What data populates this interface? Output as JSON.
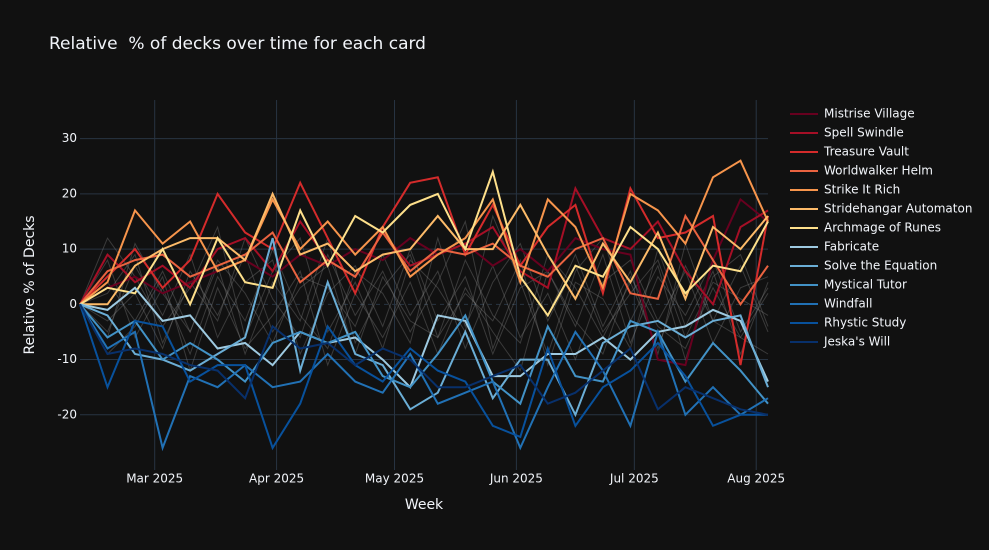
{
  "chart_data": {
    "type": "line",
    "title": "Relative  % of decks over time for each card",
    "x_label": "Week",
    "y_label": "Relative % of Decks",
    "x": [
      40,
      47,
      54,
      61,
      68,
      75,
      82,
      89,
      96,
      103,
      110,
      117,
      124,
      131,
      138,
      145,
      152,
      159,
      166,
      173,
      180,
      187,
      194,
      201,
      208,
      215
    ],
    "xlim": [
      40,
      215
    ],
    "xticks": [
      {
        "value": 59,
        "label": "Mar 2025"
      },
      {
        "value": 90,
        "label": "Apr 2025"
      },
      {
        "value": 120,
        "label": "May 2025"
      },
      {
        "value": 151,
        "label": "Jun 2025"
      },
      {
        "value": 181,
        "label": "Jul 2025"
      },
      {
        "value": 212,
        "label": "Aug 2025"
      }
    ],
    "ylim": [
      -30,
      37
    ],
    "yticks": [
      -20,
      -10,
      0,
      10,
      20,
      30
    ],
    "grid": true,
    "legend": "right",
    "background_color": "#8a8a8a",
    "background_series": [
      {
        "values": [
          0,
          4,
          -3,
          6,
          -5,
          8,
          2,
          -7,
          5,
          3,
          -4,
          9,
          -2,
          6,
          -8,
          4,
          11,
          -3,
          7,
          -5,
          2,
          8,
          -6,
          4,
          1,
          -2
        ]
      },
      {
        "values": [
          0,
          -5,
          7,
          -2,
          9,
          -6,
          4,
          8,
          -9,
          2,
          7,
          -4,
          10,
          -3,
          5,
          -9,
          3,
          6,
          -4,
          9,
          -7,
          5,
          -2,
          8,
          -5,
          3
        ]
      },
      {
        "values": [
          0,
          8,
          -6,
          3,
          -9,
          5,
          -3,
          10,
          -2,
          -8,
          6,
          2,
          -7,
          12,
          -4,
          7,
          -6,
          2,
          -10,
          4,
          8,
          -3,
          6,
          -7,
          3,
          5
        ]
      },
      {
        "values": [
          0,
          -3,
          2,
          -8,
          6,
          -2,
          9,
          -5,
          3,
          7,
          -9,
          5,
          -3,
          -6,
          8,
          -2,
          -7,
          9,
          3,
          -6,
          4,
          -8,
          7,
          -3,
          -6,
          2
        ]
      },
      {
        "values": [
          0,
          12,
          5,
          -4,
          3,
          14,
          -6,
          6,
          12,
          -5,
          4,
          -8,
          8,
          3,
          -5,
          16,
          4,
          -9,
          6,
          12,
          -3,
          7,
          -10,
          5,
          9,
          -4
        ]
      },
      {
        "values": [
          0,
          -9,
          -4,
          5,
          -12,
          3,
          -8,
          -2,
          6,
          -11,
          2,
          -6,
          4,
          -9,
          3,
          -5,
          -12,
          6,
          -3,
          -9,
          5,
          -4,
          -8,
          3,
          -6,
          -9
        ]
      },
      {
        "values": [
          0,
          2,
          9,
          -7,
          4,
          -3,
          12,
          1,
          -6,
          9,
          -2,
          6,
          -5,
          4,
          15,
          -8,
          5,
          -2,
          9,
          -4,
          6,
          -9,
          11,
          -3,
          7,
          -5
        ]
      },
      {
        "values": [
          0,
          -6,
          11,
          2,
          -5,
          7,
          -9,
          4,
          -3,
          12,
          -7,
          3,
          9,
          -6,
          2,
          -3,
          8,
          -11,
          4,
          1,
          -8,
          10,
          -4,
          6,
          -9,
          4
        ]
      }
    ],
    "series": [
      {
        "name": "Mistrise Village",
        "color": "#67001f",
        "values": [
          0,
          3,
          5,
          2,
          4,
          6,
          8,
          5,
          9,
          7,
          10,
          8,
          12,
          9,
          11,
          7,
          10,
          6,
          12,
          10,
          9,
          -10,
          -11,
          8,
          19,
          15
        ]
      },
      {
        "name": "Spell Swindle",
        "color": "#a50f26",
        "values": [
          0,
          9,
          4,
          7,
          3,
          10,
          12,
          6,
          15,
          8,
          5,
          13,
          7,
          9,
          11,
          14,
          6,
          3,
          21,
          12,
          10,
          15,
          6,
          0,
          14,
          17
        ]
      },
      {
        "name": "Treasure Vault",
        "color": "#d42b2b",
        "values": [
          0,
          5,
          10,
          3,
          8,
          20,
          13,
          10,
          22,
          12,
          2,
          14,
          22,
          23,
          9,
          18,
          7,
          14,
          18,
          2,
          21,
          12,
          13,
          16,
          -11,
          16
        ]
      },
      {
        "name": "Worldwalker Helm",
        "color": "#ea6340",
        "values": [
          0,
          6,
          8,
          9,
          5,
          7,
          9,
          13,
          4,
          8,
          5,
          13,
          6,
          10,
          9,
          11,
          7,
          5,
          10,
          12,
          2,
          1,
          16,
          8,
          0,
          7
        ]
      },
      {
        "name": "Strike It Rich",
        "color": "#f7954c",
        "values": [
          0,
          4,
          17,
          11,
          15,
          6,
          8,
          19,
          10,
          15,
          9,
          14,
          5,
          9,
          12,
          19,
          4,
          19,
          14,
          3,
          20,
          17,
          11,
          23,
          26,
          15
        ]
      },
      {
        "name": "Stridehangar Automaton",
        "color": "#fdbb69",
        "values": [
          0,
          0,
          7,
          10,
          12,
          12,
          8,
          20,
          9,
          11,
          6,
          9,
          10,
          16,
          10,
          10,
          18,
          9,
          1,
          11,
          4,
          13,
          1,
          14,
          10,
          16
        ]
      },
      {
        "name": "Archmage of Runes",
        "color": "#fee08b",
        "values": [
          0,
          3,
          2,
          10,
          0,
          12,
          4,
          3,
          17,
          7,
          16,
          13,
          18,
          20,
          10,
          24,
          5,
          -2,
          7,
          5,
          14,
          10,
          2,
          7,
          6,
          15
        ]
      },
      {
        "name": "Fabricate",
        "color": "#9ecae1",
        "values": [
          0,
          -1,
          3,
          -3,
          -2,
          -8,
          -7,
          -11,
          -5,
          -7,
          -6,
          -10,
          -15,
          -2,
          -3,
          -13,
          -13,
          -9,
          -9,
          -6,
          -10,
          -5,
          -4,
          -1,
          -3,
          -14
        ]
      },
      {
        "name": "Solve the Equation",
        "color": "#6baed6",
        "values": [
          0,
          -2,
          -9,
          -10,
          -12,
          -9,
          -6,
          12,
          -12,
          4,
          -9,
          -11,
          -19,
          -16,
          -5,
          -17,
          -10,
          -10,
          -20,
          -7,
          -4,
          -3,
          -6,
          -3,
          -2,
          -15
        ]
      },
      {
        "name": "Mystical Tutor",
        "color": "#4292c6",
        "values": [
          0,
          -6,
          -3,
          -10,
          -7,
          -10,
          -14,
          -7,
          -5,
          -7,
          -5,
          -13,
          -15,
          -9,
          -2,
          -14,
          -18,
          -4,
          -13,
          -14,
          -3,
          -5,
          -14,
          -7,
          -12,
          -18
        ]
      },
      {
        "name": "Windfall",
        "color": "#2171b5",
        "values": [
          0,
          -8,
          -5,
          -26,
          -13,
          -15,
          -11,
          -15,
          -14,
          -9,
          -14,
          -16,
          -9,
          -18,
          -16,
          -14,
          -26,
          -15,
          -5,
          -12,
          -22,
          -5,
          -20,
          -15,
          -20,
          -17
        ]
      },
      {
        "name": "Rhystic Study",
        "color": "#08519c",
        "values": [
          0,
          -15,
          -3,
          -4,
          -14,
          -11,
          -11,
          -26,
          -18,
          -4,
          -11,
          -14,
          -8,
          -12,
          -14,
          -22,
          -24,
          -8,
          -22,
          -15,
          -12,
          -7,
          -13,
          -22,
          -20,
          -20
        ]
      },
      {
        "name": "Jeska's Will",
        "color": "#08306b",
        "values": [
          0,
          -9,
          -8,
          -9,
          -11,
          -12,
          -17,
          -4,
          -8,
          -7,
          -11,
          -8,
          -10,
          -15,
          -15,
          -13,
          -11,
          -18,
          -16,
          -12,
          -8,
          -19,
          -15,
          -17,
          -19,
          -20
        ]
      }
    ]
  }
}
